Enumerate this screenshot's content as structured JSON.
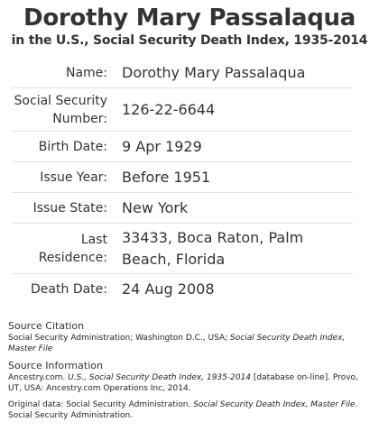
{
  "header": {
    "title": "Dorothy Mary Passalaqua",
    "subtitle": "in the U.S., Social Security Death Index, 1935-2014"
  },
  "record": {
    "name_label": "Name:",
    "name_value": "Dorothy Mary Passalaqua",
    "ssn_label_line1": "Social Security",
    "ssn_label_line2": "Number:",
    "ssn_value": "126-22-6644",
    "birth_label": "Birth Date:",
    "birth_value": "9 Apr 1929",
    "issue_year_label": "Issue Year:",
    "issue_year_value": "Before 1951",
    "issue_state_label": "Issue State:",
    "issue_state_value": "New York",
    "residence_label": "Last Residence:",
    "residence_value": "33433, Boca Raton, Palm Beach, Florida",
    "death_label": "Death Date:",
    "death_value": "24 Aug 2008"
  },
  "sources": {
    "citation_heading": "Source Citation",
    "citation_text_plain": "Social Security Administration; Washington D.C., USA; ",
    "citation_text_italic": "Social Security Death Index, Master File",
    "info_heading": "Source Information",
    "info_text_prefix": "Ancestry.com. ",
    "info_text_italic": "U.S., Social Security Death Index, 1935-2014",
    "info_text_suffix": " [database on-line]. Provo, UT, USA: Ancestry.com Operations Inc, 2014.",
    "original_prefix": "Original data: Social Security Administration. ",
    "original_italic": "Social Security Death Index, Master File",
    "original_suffix": ". Social Security Administration."
  }
}
